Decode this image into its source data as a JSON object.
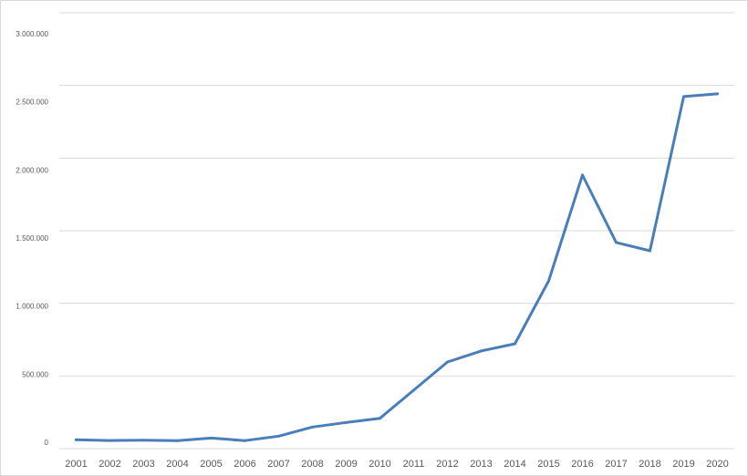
{
  "chart_data": {
    "type": "line",
    "title": "",
    "xlabel": "",
    "ylabel": "",
    "categories": [
      "2001",
      "2002",
      "2003",
      "2004",
      "2005",
      "2006",
      "2007",
      "2008",
      "2009",
      "2010",
      "2011",
      "2012",
      "2013",
      "2014",
      "2015",
      "2016",
      "2017",
      "2018",
      "2019",
      "2020"
    ],
    "series": [
      {
        "values": [
          61000,
          56000,
          58000,
          55000,
          73000,
          55000,
          86000,
          149000,
          180000,
          209000,
          402000,
          596000,
          672000,
          722000,
          1155000,
          1883000,
          1419000,
          1362000,
          2423000,
          2442000
        ],
        "color": "#4a7ebb"
      }
    ],
    "ylim": [
      0,
      3000000
    ],
    "yticks": [
      0,
      500000,
      1000000,
      1500000,
      2000000,
      2500000,
      3000000
    ],
    "ytick_labels": [
      "0",
      "500.000",
      "1.000.000",
      "1.500.000",
      "2.000.000",
      "2.500.000",
      "3.000.000"
    ],
    "grid": true,
    "legend": "none",
    "gridline_color": "#d9d9d9"
  }
}
